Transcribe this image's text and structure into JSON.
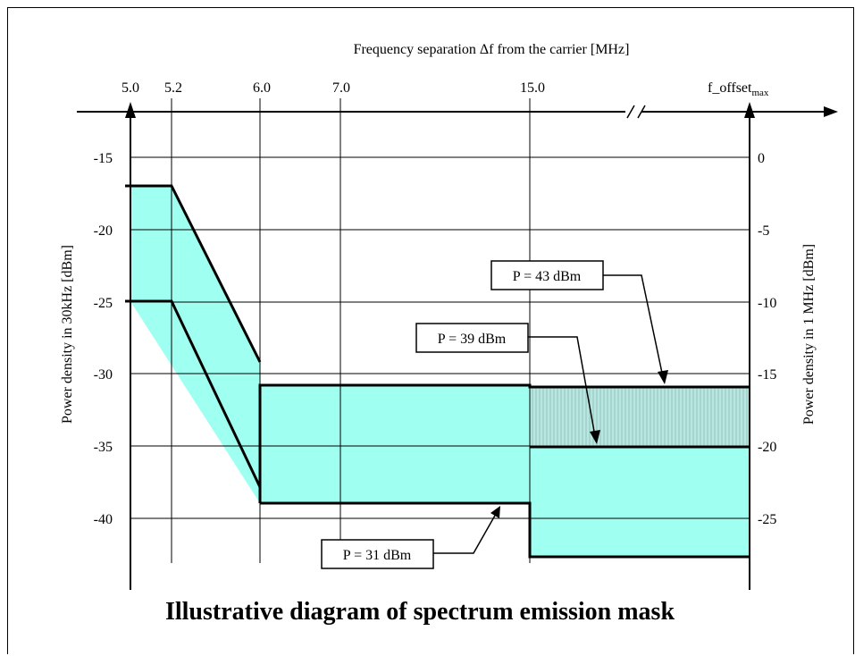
{
  "diagram": {
    "title": "Illustrative diagram of spectrum emission mask",
    "top_axis_title": "Frequency separation Δf from the carrier [MHz]",
    "top_ticks": [
      "5.0",
      "5.2",
      "6.0",
      "7.0",
      "15.0"
    ],
    "top_tick_end_base": "f_offset",
    "top_tick_end_sub": "max",
    "left_axis_title": "Power density in 30kHz [dBm]",
    "left_ticks": [
      "-15",
      "-20",
      "-25",
      "-30",
      "-35",
      "-40"
    ],
    "right_axis_title": "Power density in 1 MHz [dBm]",
    "right_ticks": [
      "0",
      "-5",
      "-10",
      "-15",
      "-20",
      "-25"
    ],
    "annotations": {
      "p43": "P = 43 dBm",
      "p39": "P = 39 dBm",
      "p31": "P = 31 dBm"
    },
    "colors": {
      "mask_fill": "#9ffff0",
      "line": "#000000"
    }
  },
  "chart_data": {
    "type": "area",
    "title": "Illustrative diagram of spectrum emission mask",
    "xlabel": "Frequency separation Δf from the carrier [MHz]",
    "ylabel": "Power density in 30kHz [dBm]",
    "y2label": "Power density in 1 MHz [dBm]",
    "ylim": [
      -45,
      -12
    ],
    "y2lim": [
      -30,
      3
    ],
    "x_ticks": [
      "5.0",
      "5.2",
      "6.0",
      "7.0",
      "15.0",
      "f_offset_max"
    ],
    "series": [
      {
        "name": "P = 43 dBm",
        "x": [
          5.0,
          5.2,
          6.0,
          6.0,
          15.0,
          15.0,
          "f_offset_max"
        ],
        "y": [
          -17,
          -17,
          -29.2,
          -30.8,
          -30.8,
          -31,
          -31
        ]
      },
      {
        "name": "P = 39 dBm",
        "x": [
          15.0,
          "f_offset_max"
        ],
        "y": [
          -35.2,
          -35.2
        ]
      },
      {
        "name": "P = 31 dBm",
        "x": [
          5.0,
          5.2,
          6.0,
          6.0,
          15.0,
          15.0,
          "f_offset_max"
        ],
        "y": [
          -25,
          -25,
          -38.2,
          -39,
          -39,
          -42.8,
          -42.8
        ]
      }
    ],
    "grid": true
  }
}
